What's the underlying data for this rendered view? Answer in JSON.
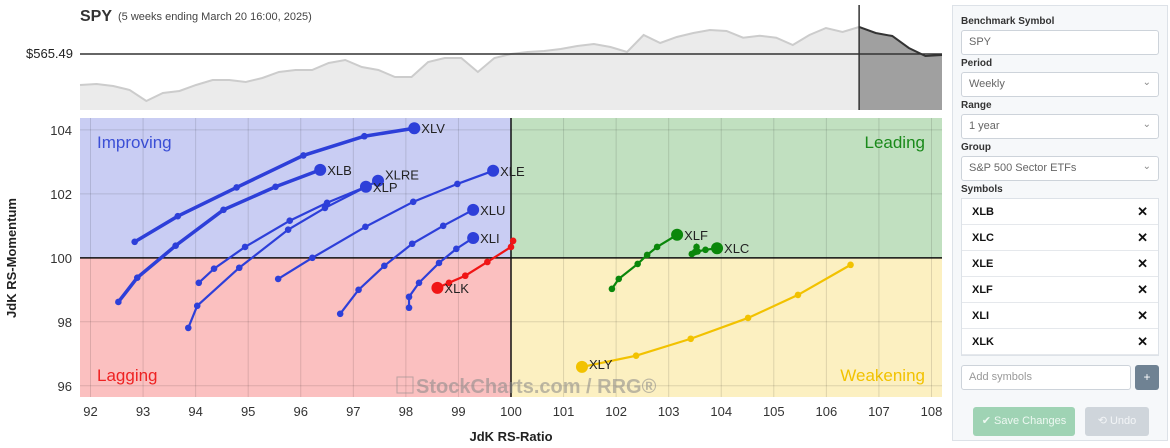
{
  "header": {
    "symbol": "SPY",
    "subtitle": "(5 weeks ending March 20 16:00, 2025)",
    "price_label": "$565.49"
  },
  "price_series": {
    "current": 565.49,
    "highlight_weeks": 5,
    "values": [
      497.3,
      499.5,
      495.1,
      486.3,
      462.1,
      479.7,
      484.1,
      497.3,
      508.3,
      508.3,
      503.9,
      512.7,
      525.9,
      530.3,
      530.3,
      545.7,
      552.3,
      536.9,
      530.3,
      514.9,
      514.9,
      547.9,
      556.7,
      556.7,
      525.9,
      556.7,
      565.5,
      569.9,
      572.1,
      576.5,
      583.1,
      587.5,
      580.9,
      569.9,
      607.3,
      589.7,
      602.9,
      611.7,
      618.3,
      616.1,
      601.3,
      605.7,
      601.3,
      585.3,
      607.3,
      622.7,
      613.9,
      624.9,
      611.7,
      605.1,
      578.7,
      561.1,
      563.3
    ]
  },
  "chart_data": {
    "type": "line",
    "xlabel": "JdK RS-Ratio",
    "ylabel": "JdK RS-Momentum",
    "xlim": [
      91.8,
      108.2
    ],
    "ylim": [
      95.65,
      104.37
    ],
    "xticks": [
      92,
      93,
      94,
      95,
      96,
      97,
      98,
      99,
      100,
      101,
      102,
      103,
      104,
      105,
      106,
      107,
      108
    ],
    "yticks": [
      96,
      98,
      100,
      102,
      104
    ],
    "grid": true,
    "quadrants": [
      {
        "name": "Improving",
        "color": "#3b4fd6",
        "bg": "#c9cdf3",
        "position": "top-left"
      },
      {
        "name": "Leading",
        "color": "#1a8a1a",
        "bg": "#c1e0c0",
        "position": "top-right"
      },
      {
        "name": "Lagging",
        "color": "#ee2222",
        "bg": "#fbc0c0",
        "position": "bottom-left"
      },
      {
        "name": "Weakening",
        "color": "#f2c200",
        "bg": "#fcf0c1",
        "position": "bottom-right"
      }
    ],
    "watermark": "StockCharts.com / RRG®",
    "series": [
      {
        "name": "XLV",
        "color": "#2d3fd9",
        "points": [
          [
            92.84,
            100.5
          ],
          [
            93.66,
            101.3
          ],
          [
            94.78,
            102.2
          ],
          [
            96.05,
            103.2
          ],
          [
            97.21,
            103.8
          ],
          [
            98.16,
            104.05
          ]
        ]
      },
      {
        "name": "XLB",
        "color": "#2d3fd9",
        "points": [
          [
            92.53,
            98.62
          ],
          [
            92.89,
            99.38
          ],
          [
            93.62,
            100.38
          ],
          [
            94.53,
            101.5
          ],
          [
            95.52,
            102.22
          ],
          [
            96.37,
            102.75
          ]
        ]
      },
      {
        "name": "XLRE",
        "color": "#2d3fd9",
        "points": [
          [
            93.86,
            97.81
          ],
          [
            94.03,
            98.5
          ],
          [
            94.83,
            99.69
          ],
          [
            95.76,
            100.88
          ],
          [
            96.46,
            101.56
          ],
          [
            97.47,
            102.41
          ]
        ]
      },
      {
        "name": "XLP",
        "color": "#2d3fd9",
        "points": [
          [
            94.06,
            99.22
          ],
          [
            94.35,
            99.66
          ],
          [
            94.94,
            100.34
          ],
          [
            95.79,
            101.16
          ],
          [
            96.5,
            101.72
          ],
          [
            97.24,
            102.22
          ]
        ]
      },
      {
        "name": "XLE",
        "color": "#2d3fd9",
        "points": [
          [
            95.57,
            99.34
          ],
          [
            96.22,
            100.0
          ],
          [
            97.23,
            100.97
          ],
          [
            98.14,
            101.75
          ],
          [
            98.98,
            102.31
          ],
          [
            99.66,
            102.72
          ]
        ]
      },
      {
        "name": "XLU",
        "color": "#2d3fd9",
        "points": [
          [
            96.75,
            98.25
          ],
          [
            97.1,
            99.0
          ],
          [
            97.59,
            99.75
          ],
          [
            98.12,
            100.44
          ],
          [
            98.71,
            101.0
          ],
          [
            99.28,
            101.5
          ]
        ]
      },
      {
        "name": "XLI",
        "color": "#2d3fd9",
        "points": [
          [
            98.06,
            98.44
          ],
          [
            98.06,
            98.78
          ],
          [
            98.25,
            99.22
          ],
          [
            98.63,
            99.84
          ],
          [
            98.96,
            100.28
          ],
          [
            99.28,
            100.62
          ]
        ]
      },
      {
        "name": "XLK",
        "color": "#f01515",
        "points": [
          [
            100.04,
            100.53
          ],
          [
            100.0,
            100.34
          ],
          [
            99.55,
            99.87
          ],
          [
            99.13,
            99.44
          ],
          [
            98.82,
            99.22
          ],
          [
            98.6,
            99.06
          ]
        ]
      },
      {
        "name": "XLF",
        "color": "#0b870b",
        "points": [
          [
            101.92,
            99.03
          ],
          [
            102.05,
            99.34
          ],
          [
            102.41,
            99.81
          ],
          [
            102.59,
            100.09
          ],
          [
            102.78,
            100.34
          ],
          [
            103.16,
            100.72
          ]
        ]
      },
      {
        "name": "XLC",
        "color": "#0b870b",
        "points": [
          [
            103.44,
            100.12
          ],
          [
            103.5,
            100.18
          ],
          [
            103.53,
            100.34
          ],
          [
            103.55,
            100.2
          ],
          [
            103.7,
            100.25
          ],
          [
            103.92,
            100.3
          ]
        ]
      },
      {
        "name": "XLY",
        "color": "#f2c200",
        "points": [
          [
            106.46,
            99.78
          ],
          [
            105.46,
            98.84
          ],
          [
            104.51,
            98.12
          ],
          [
            103.42,
            97.47
          ],
          [
            102.38,
            96.94
          ],
          [
            101.35,
            96.59
          ]
        ]
      }
    ]
  },
  "panel": {
    "benchmark_label": "Benchmark Symbol",
    "benchmark_value": "SPY",
    "period_label": "Period",
    "period_value": "Weekly",
    "range_label": "Range",
    "range_value": "1 year",
    "group_label": "Group",
    "group_value": "S&P 500 Sector ETFs",
    "symbols_label": "Symbols",
    "symbols": [
      "XLB",
      "XLC",
      "XLE",
      "XLF",
      "XLI",
      "XLK"
    ],
    "add_placeholder": "Add symbols",
    "add_button": "+",
    "save_label": "✔ Save Changes",
    "undo_label": "⟲ Undo"
  }
}
